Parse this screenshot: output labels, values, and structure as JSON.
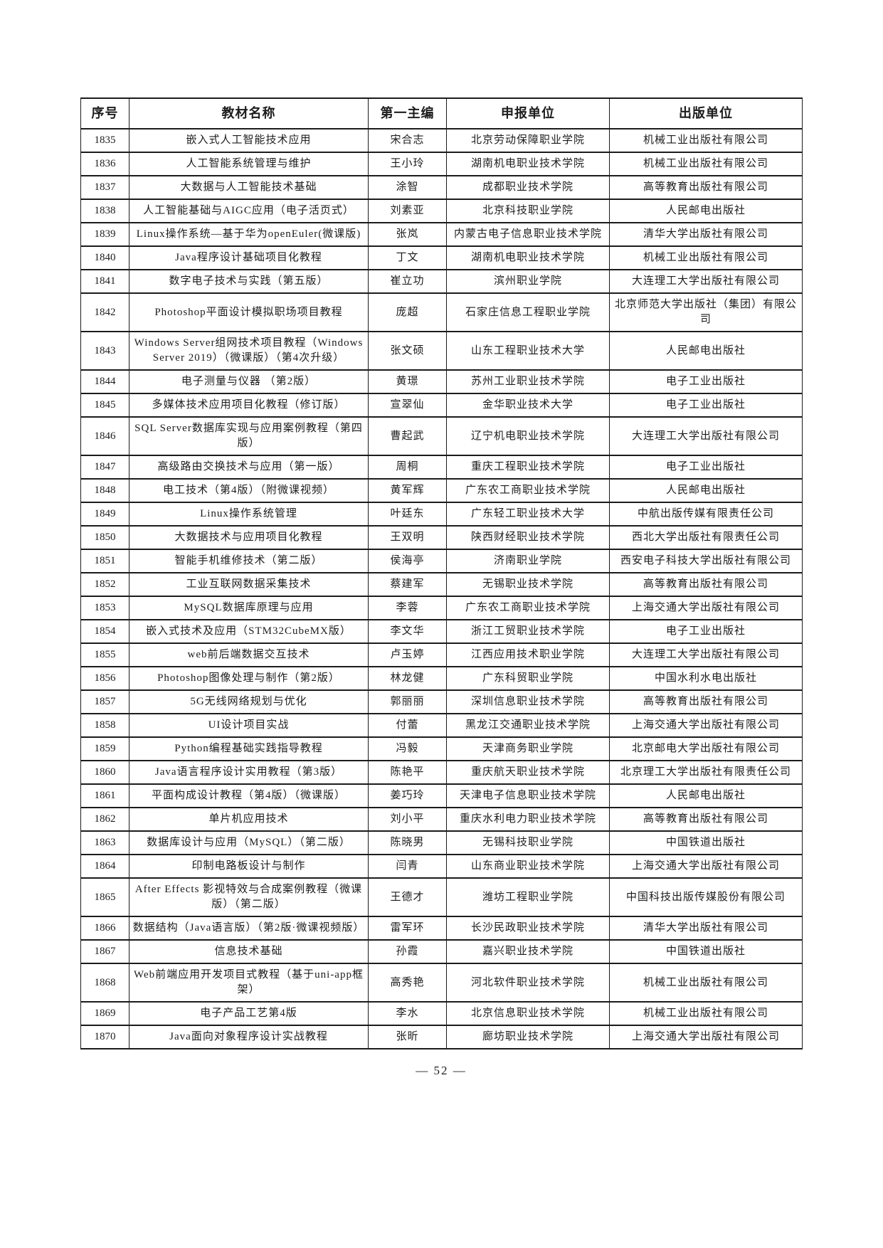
{
  "table": {
    "headers": [
      "序号",
      "教材名称",
      "第一主编",
      "申报单位",
      "出版单位"
    ],
    "rows": [
      [
        "1835",
        "嵌入式人工智能技术应用",
        "宋合志",
        "北京劳动保障职业学院",
        "机械工业出版社有限公司"
      ],
      [
        "1836",
        "人工智能系统管理与维护",
        "王小玲",
        "湖南机电职业技术学院",
        "机械工业出版社有限公司"
      ],
      [
        "1837",
        "大数据与人工智能技术基础",
        "涂智",
        "成都职业技术学院",
        "高等教育出版社有限公司"
      ],
      [
        "1838",
        "人工智能基础与AIGC应用（电子活页式）",
        "刘素亚",
        "北京科技职业学院",
        "人民邮电出版社"
      ],
      [
        "1839",
        "Linux操作系统—基于华为openEuler(微课版)",
        "张岚",
        "内蒙古电子信息职业技术学院",
        "清华大学出版社有限公司"
      ],
      [
        "1840",
        "Java程序设计基础项目化教程",
        "丁文",
        "湖南机电职业技术学院",
        "机械工业出版社有限公司"
      ],
      [
        "1841",
        "数字电子技术与实践（第五版）",
        "崔立功",
        "滨州职业学院",
        "大连理工大学出版社有限公司"
      ],
      [
        "1842",
        "Photoshop平面设计模拟职场项目教程",
        "庞超",
        "石家庄信息工程职业学院",
        "北京师范大学出版社（集团）有限公司"
      ],
      [
        "1843",
        "Windows Server组网技术项目教程（Windows Server 2019）（微课版）（第4次升级）",
        "张文硕",
        "山东工程职业技术大学",
        "人民邮电出版社"
      ],
      [
        "1844",
        "电子测量与仪器 （第2版）",
        "黄璟",
        "苏州工业职业技术学院",
        "电子工业出版社"
      ],
      [
        "1845",
        "多媒体技术应用项目化教程（修订版）",
        "宣翠仙",
        "金华职业技术大学",
        "电子工业出版社"
      ],
      [
        "1846",
        "SQL Server数据库实现与应用案例教程（第四版）",
        "曹起武",
        "辽宁机电职业技术学院",
        "大连理工大学出版社有限公司"
      ],
      [
        "1847",
        "高级路由交换技术与应用（第一版）",
        "周桐",
        "重庆工程职业技术学院",
        "电子工业出版社"
      ],
      [
        "1848",
        "电工技术（第4版）（附微课视频）",
        "黄军辉",
        "广东农工商职业技术学院",
        "人民邮电出版社"
      ],
      [
        "1849",
        "Linux操作系统管理",
        "叶廷东",
        "广东轻工职业技术大学",
        "中航出版传媒有限责任公司"
      ],
      [
        "1850",
        "大数据技术与应用项目化教程",
        "王双明",
        "陕西财经职业技术学院",
        "西北大学出版社有限责任公司"
      ],
      [
        "1851",
        "智能手机维修技术（第二版）",
        "侯海亭",
        "济南职业学院",
        "西安电子科技大学出版社有限公司"
      ],
      [
        "1852",
        "工业互联网数据采集技术",
        "蔡建军",
        "无锡职业技术学院",
        "高等教育出版社有限公司"
      ],
      [
        "1853",
        "MySQL数据库原理与应用",
        "李蓉",
        "广东农工商职业技术学院",
        "上海交通大学出版社有限公司"
      ],
      [
        "1854",
        "嵌入式技术及应用（STM32CubeMX版）",
        "李文华",
        "浙江工贸职业技术学院",
        "电子工业出版社"
      ],
      [
        "1855",
        "web前后端数据交互技术",
        "卢玉婷",
        "江西应用技术职业学院",
        "大连理工大学出版社有限公司"
      ],
      [
        "1856",
        "Photoshop图像处理与制作（第2版）",
        "林龙健",
        "广东科贸职业学院",
        "中国水利水电出版社"
      ],
      [
        "1857",
        "5G无线网络规划与优化",
        "郭丽丽",
        "深圳信息职业技术学院",
        "高等教育出版社有限公司"
      ],
      [
        "1858",
        "UI设计项目实战",
        "付蕾",
        "黑龙江交通职业技术学院",
        "上海交通大学出版社有限公司"
      ],
      [
        "1859",
        "Python编程基础实践指导教程",
        "冯毅",
        "天津商务职业学院",
        "北京邮电大学出版社有限公司"
      ],
      [
        "1860",
        "Java语言程序设计实用教程（第3版）",
        "陈艳平",
        "重庆航天职业技术学院",
        "北京理工大学出版社有限责任公司"
      ],
      [
        "1861",
        "平面构成设计教程（第4版）（微课版）",
        "姜巧玲",
        "天津电子信息职业技术学院",
        "人民邮电出版社"
      ],
      [
        "1862",
        "单片机应用技术",
        "刘小平",
        "重庆水利电力职业技术学院",
        "高等教育出版社有限公司"
      ],
      [
        "1863",
        "数据库设计与应用（MySQL）（第二版）",
        "陈晓男",
        "无锡科技职业学院",
        "中国铁道出版社"
      ],
      [
        "1864",
        "印制电路板设计与制作",
        "闫青",
        "山东商业职业技术学院",
        "上海交通大学出版社有限公司"
      ],
      [
        "1865",
        "After Effects 影视特效与合成案例教程（微课版）（第二版）",
        "王德才",
        "潍坊工程职业学院",
        "中国科技出版传媒股份有限公司"
      ],
      [
        "1866",
        "数据结构（Java语言版）（第2版·微课视频版）",
        "雷军环",
        "长沙民政职业技术学院",
        "清华大学出版社有限公司"
      ],
      [
        "1867",
        "信息技术基础",
        "孙霞",
        "嘉兴职业技术学院",
        "中国铁道出版社"
      ],
      [
        "1868",
        "Web前端应用开发项目式教程（基于uni-app框架）",
        "高秀艳",
        "河北软件职业技术学院",
        "机械工业出版社有限公司"
      ],
      [
        "1869",
        "电子产品工艺第4版",
        "李水",
        "北京信息职业技术学院",
        "机械工业出版社有限公司"
      ],
      [
        "1870",
        "Java面向对象程序设计实战教程",
        "张昕",
        "廊坊职业技术学院",
        "上海交通大学出版社有限公司"
      ]
    ]
  },
  "footer": {
    "page_label": "— 52 —"
  }
}
